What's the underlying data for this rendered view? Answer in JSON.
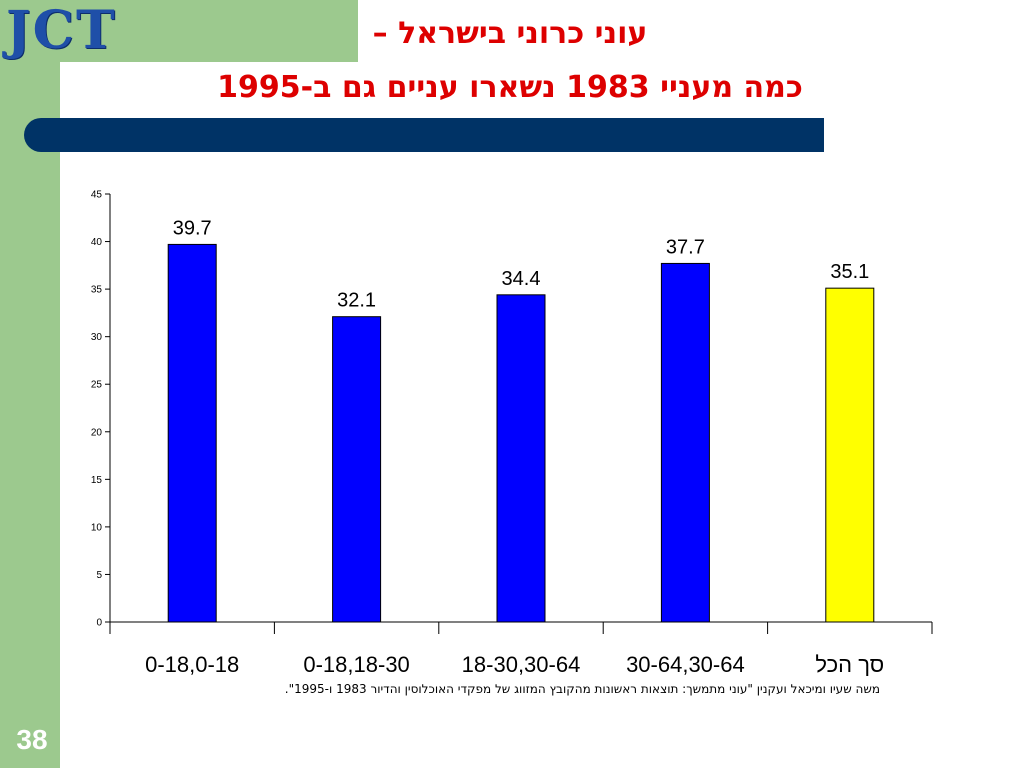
{
  "header": {
    "logo_text": "JCT",
    "title_line1": "עוני כרוני בישראל –",
    "title_line2": "כמה מעניי 1983 נשארו עניים גם ב-1995"
  },
  "footer": {
    "source_note": "משה שעיו ומיכאל ועקנין \"עוני מתמשך: תוצאות ראשונות מהקובץ המזווג של מפקדי האוכלוסין והדיור 1983 ו-1995\".",
    "slide_number": "38"
  },
  "colors": {
    "bar": "#0000ff",
    "total_bar": "#ffff00",
    "title": "#dd0000",
    "accent_band": "#003366",
    "side": "#9cc98e"
  },
  "chart_data": {
    "type": "bar",
    "categories": [
      "0-18,0-18",
      "0-18,18-30",
      "18-30,30-64",
      "30-64,30-64",
      "סך הכל"
    ],
    "values": [
      39.7,
      32.1,
      34.4,
      37.7,
      35.1
    ],
    "data_labels": [
      "39.7",
      "32.1",
      "34.4",
      "37.7",
      "35.1"
    ],
    "bar_colors": [
      "#0000ff",
      "#0000ff",
      "#0000ff",
      "#0000ff",
      "#ffff00"
    ],
    "yticks": [
      0,
      5,
      10,
      15,
      20,
      25,
      30,
      35,
      40,
      45
    ],
    "ylim": [
      0,
      45
    ],
    "title": "",
    "xlabel": "",
    "ylabel": "",
    "grid": false,
    "legend": "none"
  }
}
